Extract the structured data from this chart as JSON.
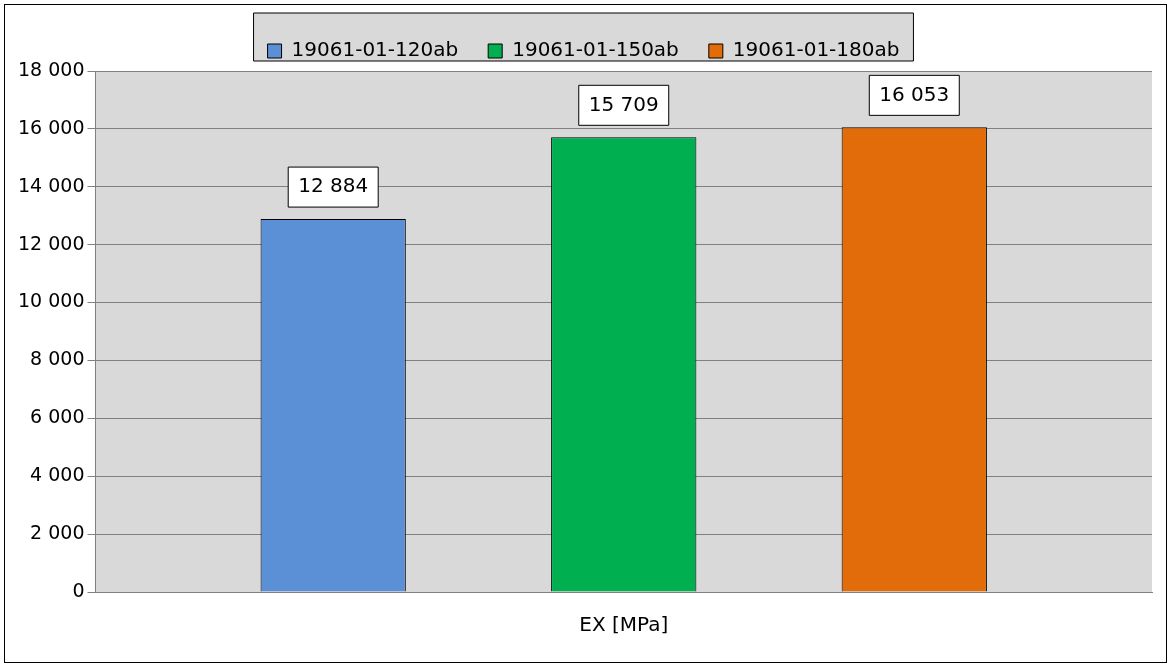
{
  "chart_data": {
    "type": "bar",
    "categories": [
      "EX [MPa]"
    ],
    "series": [
      {
        "name": "19061-01-120ab",
        "color": "#5b8fd6",
        "values": [
          12884
        ],
        "value_labels": [
          "12 884"
        ]
      },
      {
        "name": "19061-01-150ab",
        "color": "#00b050",
        "values": [
          15709
        ],
        "value_labels": [
          "15 709"
        ]
      },
      {
        "name": "19061-01-180ab",
        "color": "#e36c0a",
        "values": [
          16053
        ],
        "value_labels": [
          "16 053"
        ]
      }
    ],
    "ylim": [
      0,
      18000
    ],
    "yticks": [
      {
        "value": 0,
        "label": "0"
      },
      {
        "value": 2000,
        "label": "2 000"
      },
      {
        "value": 4000,
        "label": "4 000"
      },
      {
        "value": 6000,
        "label": "6 000"
      },
      {
        "value": 8000,
        "label": "8 000"
      },
      {
        "value": 10000,
        "label": "10 000"
      },
      {
        "value": 12000,
        "label": "12 000"
      },
      {
        "value": 14000,
        "label": "14 000"
      },
      {
        "value": 16000,
        "label": "16 000"
      },
      {
        "value": 18000,
        "label": "18 000"
      }
    ],
    "grid": "y",
    "legend": "top"
  }
}
